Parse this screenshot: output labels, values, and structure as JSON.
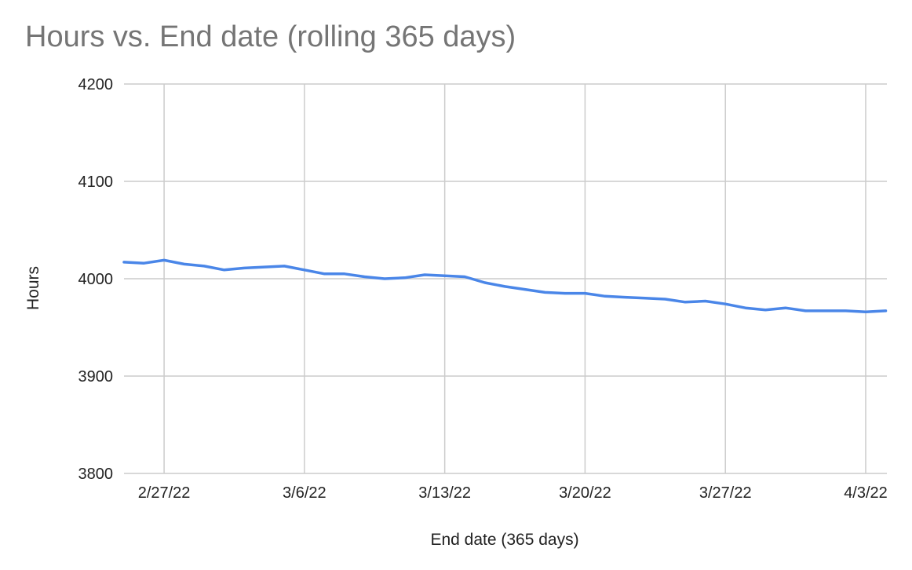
{
  "chart_data": {
    "type": "line",
    "title": "Hours vs. End date (rolling 365 days)",
    "xlabel": "End date (365 days)",
    "ylabel": "Hours",
    "ylim": [
      3800,
      4200
    ],
    "yticks": [
      3800,
      3900,
      4000,
      4100,
      4200
    ],
    "xlim": [
      "2022-02-25",
      "2022-04-03"
    ],
    "xticks": [
      {
        "date": "2022-02-27",
        "label": "2/27/22"
      },
      {
        "date": "2022-03-06",
        "label": "3/6/22"
      },
      {
        "date": "2022-03-13",
        "label": "3/13/22"
      },
      {
        "date": "2022-03-20",
        "label": "3/20/22"
      },
      {
        "date": "2022-03-27",
        "label": "3/27/22"
      },
      {
        "date": "2022-04-03",
        "label": "4/3/22"
      }
    ],
    "grid": true,
    "series": [
      {
        "color": "#4a86e8",
        "points": [
          {
            "x": "2022-02-25",
            "y": 4017
          },
          {
            "x": "2022-02-26",
            "y": 4016
          },
          {
            "x": "2022-02-27",
            "y": 4019
          },
          {
            "x": "2022-02-28",
            "y": 4015
          },
          {
            "x": "2022-03-01",
            "y": 4013
          },
          {
            "x": "2022-03-02",
            "y": 4009
          },
          {
            "x": "2022-03-03",
            "y": 4011
          },
          {
            "x": "2022-03-04",
            "y": 4012
          },
          {
            "x": "2022-03-05",
            "y": 4013
          },
          {
            "x": "2022-03-06",
            "y": 4009
          },
          {
            "x": "2022-03-07",
            "y": 4005
          },
          {
            "x": "2022-03-08",
            "y": 4005
          },
          {
            "x": "2022-03-09",
            "y": 4002
          },
          {
            "x": "2022-03-10",
            "y": 4000
          },
          {
            "x": "2022-03-11",
            "y": 4001
          },
          {
            "x": "2022-03-12",
            "y": 4004
          },
          {
            "x": "2022-03-13",
            "y": 4003
          },
          {
            "x": "2022-03-14",
            "y": 4002
          },
          {
            "x": "2022-03-15",
            "y": 3996
          },
          {
            "x": "2022-03-16",
            "y": 3992
          },
          {
            "x": "2022-03-17",
            "y": 3989
          },
          {
            "x": "2022-03-18",
            "y": 3986
          },
          {
            "x": "2022-03-19",
            "y": 3985
          },
          {
            "x": "2022-03-20",
            "y": 3985
          },
          {
            "x": "2022-03-21",
            "y": 3982
          },
          {
            "x": "2022-03-22",
            "y": 3981
          },
          {
            "x": "2022-03-23",
            "y": 3980
          },
          {
            "x": "2022-03-24",
            "y": 3979
          },
          {
            "x": "2022-03-25",
            "y": 3976
          },
          {
            "x": "2022-03-26",
            "y": 3977
          },
          {
            "x": "2022-03-27",
            "y": 3974
          },
          {
            "x": "2022-03-28",
            "y": 3970
          },
          {
            "x": "2022-03-29",
            "y": 3968
          },
          {
            "x": "2022-03-30",
            "y": 3970
          },
          {
            "x": "2022-03-31",
            "y": 3967
          },
          {
            "x": "2022-04-01",
            "y": 3967
          },
          {
            "x": "2022-04-02",
            "y": 3967
          },
          {
            "x": "2022-04-03",
            "y": 3966
          },
          {
            "x": "2022-04-04",
            "y": 3967
          }
        ]
      }
    ]
  }
}
